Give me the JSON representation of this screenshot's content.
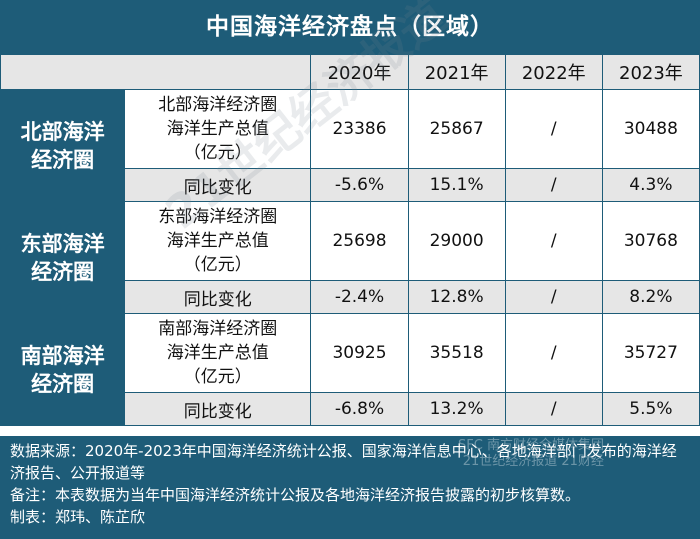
{
  "title": "中国海洋经济盘点（区域）",
  "years": [
    "2020年",
    "2021年",
    "2022年",
    "2023年"
  ],
  "regions": [
    {
      "name_line1": "北部海洋",
      "name_line2": "经济圈",
      "metric_line1": "北部海洋经济圈",
      "metric_line2": "海洋生产总值",
      "metric_line3": "（亿元）",
      "values": [
        "23386",
        "25867",
        "/",
        "30488"
      ],
      "growth_label": "同比变化",
      "growth": [
        "-5.6%",
        "15.1%",
        "/",
        "4.3%"
      ]
    },
    {
      "name_line1": "东部海洋",
      "name_line2": "经济圈",
      "metric_line1": "东部海洋经济圈",
      "metric_line2": "海洋生产总值",
      "metric_line3": "（亿元）",
      "values": [
        "25698",
        "29000",
        "/",
        "30768"
      ],
      "growth_label": "同比变化",
      "growth": [
        "-2.4%",
        "12.8%",
        "/",
        "8.2%"
      ]
    },
    {
      "name_line1": "南部海洋",
      "name_line2": "经济圈",
      "metric_line1": "南部海洋经济圈",
      "metric_line2": "海洋生产总值",
      "metric_line3": "（亿元）",
      "values": [
        "30925",
        "35518",
        "/",
        "35727"
      ],
      "growth_label": "同比变化",
      "growth": [
        "-6.8%",
        "13.2%",
        "/",
        "5.5%"
      ]
    }
  ],
  "footer": {
    "source": "数据来源：2020年-2023年中国海洋经济统计公报、国家海洋信息中心、各地海洋部门发布的海洋经济报告、公开报道等",
    "note": "备注：本表数据为当年中国海洋经济统计公报及各地海洋经济报告披露的初步核算数。",
    "made_by": "制表：郑玮、陈芷欣"
  },
  "watermark": "21世纪经济报道",
  "logo": {
    "line1": "SFC 南方财经全媒体集团",
    "line2": "21世纪经济报道 21财经"
  },
  "colors": {
    "header_blue": "#1e5c78",
    "row_grey": "#e6e6e6"
  }
}
